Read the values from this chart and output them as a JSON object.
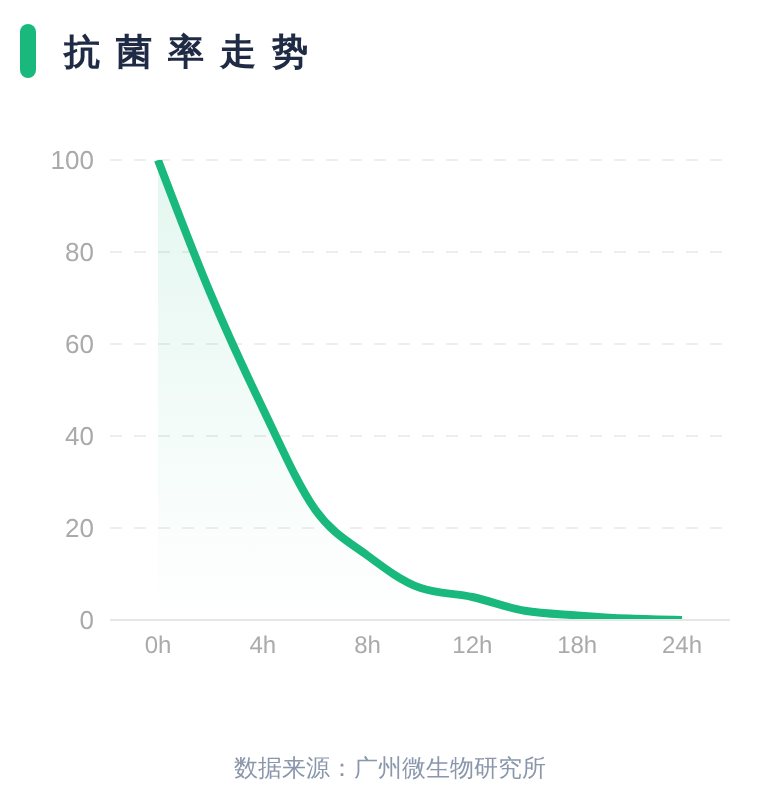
{
  "chart_data": {
    "type": "area",
    "title": "抗菌率走势",
    "categories": [
      "0h",
      null,
      "4h",
      null,
      "8h",
      null,
      "12h",
      null,
      "18h",
      null,
      "24h"
    ],
    "values": [
      100,
      71,
      46,
      24,
      14,
      7,
      5,
      2,
      1,
      0.3,
      0
    ],
    "color": "#19b97d",
    "ylim": [
      0,
      100
    ],
    "yticks": [
      0,
      20,
      40,
      60,
      80,
      100
    ],
    "grid": "y",
    "marker": "none",
    "line_style": "solid",
    "annotations": [
      "数据来源：广州微生物研究所"
    ]
  }
}
